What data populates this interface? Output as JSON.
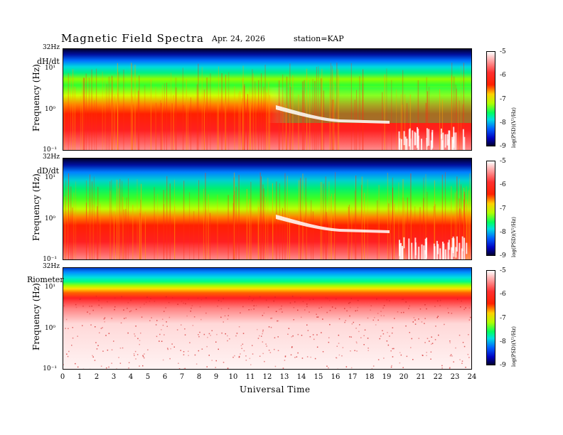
{
  "header": {
    "title": "Magnetic  Field  Spectra",
    "date": "Apr. 24, 2026",
    "station": "station=KAP"
  },
  "chart_data": [
    {
      "type": "heatmap",
      "panel_label": "dH/dt",
      "ylabel": "Frequency  (Hz)",
      "yticks": [
        "32Hz",
        "10¹",
        "10⁰",
        "10⁻¹"
      ],
      "yscale": "log",
      "ylim": [
        0.1,
        32
      ],
      "colorbar_label": "log(PSD)(V²/Hz)",
      "colorbar_ticks": [
        "-5",
        "-6",
        "-7",
        "-8",
        "-9"
      ]
    },
    {
      "type": "heatmap",
      "panel_label": "dD/dt",
      "ylabel": "Frequency  (Hz)",
      "yticks": [
        "32Hz",
        "10¹",
        "10⁰",
        "10⁻¹"
      ],
      "yscale": "log",
      "ylim": [
        0.1,
        32
      ],
      "colorbar_label": "log(PSD)(V²/Hz)",
      "colorbar_ticks": [
        "-5",
        "-6",
        "-7",
        "-8",
        "-9"
      ]
    },
    {
      "type": "heatmap",
      "panel_label": "Riometer",
      "ylabel": "Frequency  (Hz)",
      "yticks": [
        "32Hz",
        "10¹",
        "10⁰",
        "10⁻¹"
      ],
      "yscale": "log",
      "ylim": [
        0.1,
        32
      ],
      "colorbar_label": "log(PSD)(V²/Hz)",
      "colorbar_ticks": [
        "-5",
        "-6",
        "-7",
        "-8",
        "-9"
      ]
    }
  ],
  "xaxis": {
    "title": "Universal Time",
    "ticks": [
      "0",
      "1",
      "2",
      "3",
      "4",
      "5",
      "6",
      "7",
      "8",
      "9",
      "10",
      "11",
      "12",
      "13",
      "14",
      "15",
      "16",
      "17",
      "18",
      "19",
      "20",
      "21",
      "22",
      "23",
      "24"
    ],
    "xlim": [
      0,
      24
    ]
  }
}
